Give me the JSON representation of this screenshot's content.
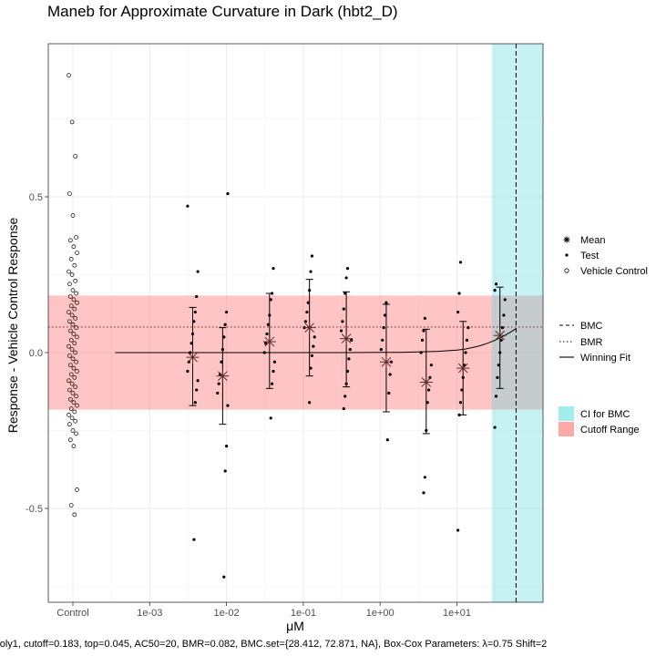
{
  "chart_data": {
    "type": "scatter",
    "title": "Maneb for Approximate Curvature in Dark (hbt2_D)",
    "xlabel": "μM",
    "ylabel": "Response - Vehicle Control Response",
    "x_tick_labels": [
      "Control",
      "1e-03",
      "1e-02",
      "1e-01",
      "1e+00",
      "1e+01"
    ],
    "x_tick_values_log10": [
      null,
      -3,
      -2,
      -1,
      0,
      1
    ],
    "xlim_log10": [
      -3.9,
      2.15
    ],
    "y_tick_labels": [
      "-0.5",
      "0.0",
      "0.5"
    ],
    "y_tick_values": [
      -0.5,
      0.0,
      0.5
    ],
    "ylim": [
      -0.8,
      0.98
    ],
    "grid": true,
    "cutoff_range": [
      -0.183,
      0.183
    ],
    "bmr_line": 0.082,
    "bmc_ci_log10": [
      1.454,
      1.862
    ],
    "bmc_dashed_log10": 1.77,
    "fit_curve": {
      "log10_x": [
        -3.45,
        -3,
        -2.5,
        -2,
        -1.5,
        -1,
        -0.5,
        0,
        0.25,
        0.5,
        0.75,
        1,
        1.1,
        1.2,
        1.3,
        1.4,
        1.5,
        1.6,
        1.7,
        1.77
      ],
      "y": [
        0,
        0,
        0,
        0,
        0,
        0,
        0.0001,
        0.0005,
        0.001,
        0.002,
        0.004,
        0.008,
        0.011,
        0.016,
        0.022,
        0.03,
        0.04,
        0.052,
        0.066,
        0.077
      ]
    },
    "vehicle_control": [
      0.89,
      0.74,
      0.63,
      0.51,
      0.44,
      0.37,
      0.36,
      0.34,
      0.32,
      0.3,
      0.28,
      0.26,
      0.25,
      0.23,
      0.22,
      0.2,
      0.19,
      0.18,
      0.17,
      0.16,
      0.15,
      0.14,
      0.13,
      0.12,
      0.11,
      0.1,
      0.09,
      0.08,
      0.07,
      0.06,
      0.05,
      0.04,
      0.03,
      0.02,
      0.01,
      0.0,
      -0.01,
      -0.02,
      -0.03,
      -0.04,
      -0.05,
      -0.06,
      -0.07,
      -0.08,
      -0.09,
      -0.1,
      -0.11,
      -0.12,
      -0.13,
      -0.14,
      -0.15,
      -0.16,
      -0.17,
      -0.18,
      -0.19,
      -0.2,
      -0.21,
      -0.22,
      -0.23,
      -0.25,
      -0.26,
      -0.28,
      -0.3,
      -0.44,
      -0.49,
      -0.52
    ],
    "concentrations": [
      {
        "log10_x": -2.44,
        "mean": -0.015,
        "err_low": -0.17,
        "err_high": 0.145,
        "points": [
          0.47,
          0.26,
          0.18,
          0.13,
          0.1,
          0.06,
          0.03,
          0.0,
          -0.03,
          -0.06,
          -0.09,
          -0.12,
          -0.16,
          -0.6
        ]
      },
      {
        "log10_x": -2.05,
        "mean": -0.075,
        "err_low": -0.23,
        "err_high": 0.08,
        "points": [
          0.51,
          0.13,
          0.09,
          0.05,
          0.01,
          -0.03,
          -0.07,
          -0.1,
          -0.13,
          -0.17,
          -0.3,
          -0.38,
          -0.72
        ]
      },
      {
        "log10_x": -1.44,
        "mean": 0.035,
        "err_low": -0.115,
        "err_high": 0.19,
        "points": [
          0.27,
          0.19,
          0.17,
          0.12,
          0.09,
          0.06,
          0.03,
          0.0,
          -0.03,
          -0.06,
          -0.1,
          -0.21
        ]
      },
      {
        "log10_x": -0.92,
        "mean": 0.08,
        "err_low": -0.075,
        "err_high": 0.235,
        "points": [
          0.31,
          0.26,
          0.2,
          0.16,
          0.13,
          0.1,
          0.08,
          0.05,
          0.02,
          -0.01,
          -0.05,
          -0.16
        ]
      },
      {
        "log10_x": -0.44,
        "mean": 0.045,
        "err_low": -0.11,
        "err_high": 0.195,
        "points": [
          0.27,
          0.24,
          0.19,
          0.14,
          0.1,
          0.07,
          0.04,
          0.01,
          -0.02,
          -0.06,
          -0.1,
          -0.14,
          -0.18
        ]
      },
      {
        "log10_x": 0.08,
        "mean": -0.03,
        "err_low": -0.19,
        "err_high": 0.155,
        "points": [
          0.16,
          0.12,
          0.08,
          0.04,
          0.01,
          -0.03,
          -0.07,
          -0.13,
          -0.28
        ]
      },
      {
        "log10_x": 0.6,
        "mean": -0.095,
        "err_low": -0.26,
        "err_high": 0.075,
        "points": [
          0.11,
          0.07,
          0.04,
          0.0,
          -0.04,
          -0.08,
          -0.12,
          -0.16,
          -0.25,
          -0.4,
          -0.45
        ]
      },
      {
        "log10_x": 1.08,
        "mean": -0.05,
        "err_low": -0.2,
        "err_high": 0.1,
        "points": [
          0.29,
          0.19,
          0.13,
          0.08,
          0.04,
          0.0,
          -0.04,
          -0.08,
          -0.12,
          -0.16,
          -0.2,
          -0.57
        ]
      },
      {
        "log10_x": 1.56,
        "mean": 0.055,
        "err_low": -0.115,
        "err_high": 0.21,
        "points": [
          0.22,
          0.2,
          0.17,
          0.12,
          0.08,
          0.04,
          0.0,
          -0.04,
          -0.08,
          -0.14,
          -0.24
        ]
      }
    ],
    "legend_shapes": [
      {
        "symbol": "star",
        "label": "Mean"
      },
      {
        "symbol": "dot",
        "label": "Test"
      },
      {
        "symbol": "circle",
        "label": "Vehicle Control"
      }
    ],
    "legend_lines": [
      {
        "style": "dashed",
        "label": "BMC"
      },
      {
        "style": "dotted",
        "label": "BMR"
      },
      {
        "style": "solid",
        "label": "Winning Fit"
      }
    ],
    "legend_fills": [
      {
        "color": "#a5ecef",
        "label": "CI for BMC"
      },
      {
        "color": "#ffa8a8",
        "label": "Cutoff Range"
      }
    ],
    "footnote": "oly1, cutoff=0.183, top=0.045, AC50=20, BMR=0.082, BMC.set={28.412, 72.871, NA}, Box-Cox Parameters: λ=0.75 Shift=2"
  }
}
